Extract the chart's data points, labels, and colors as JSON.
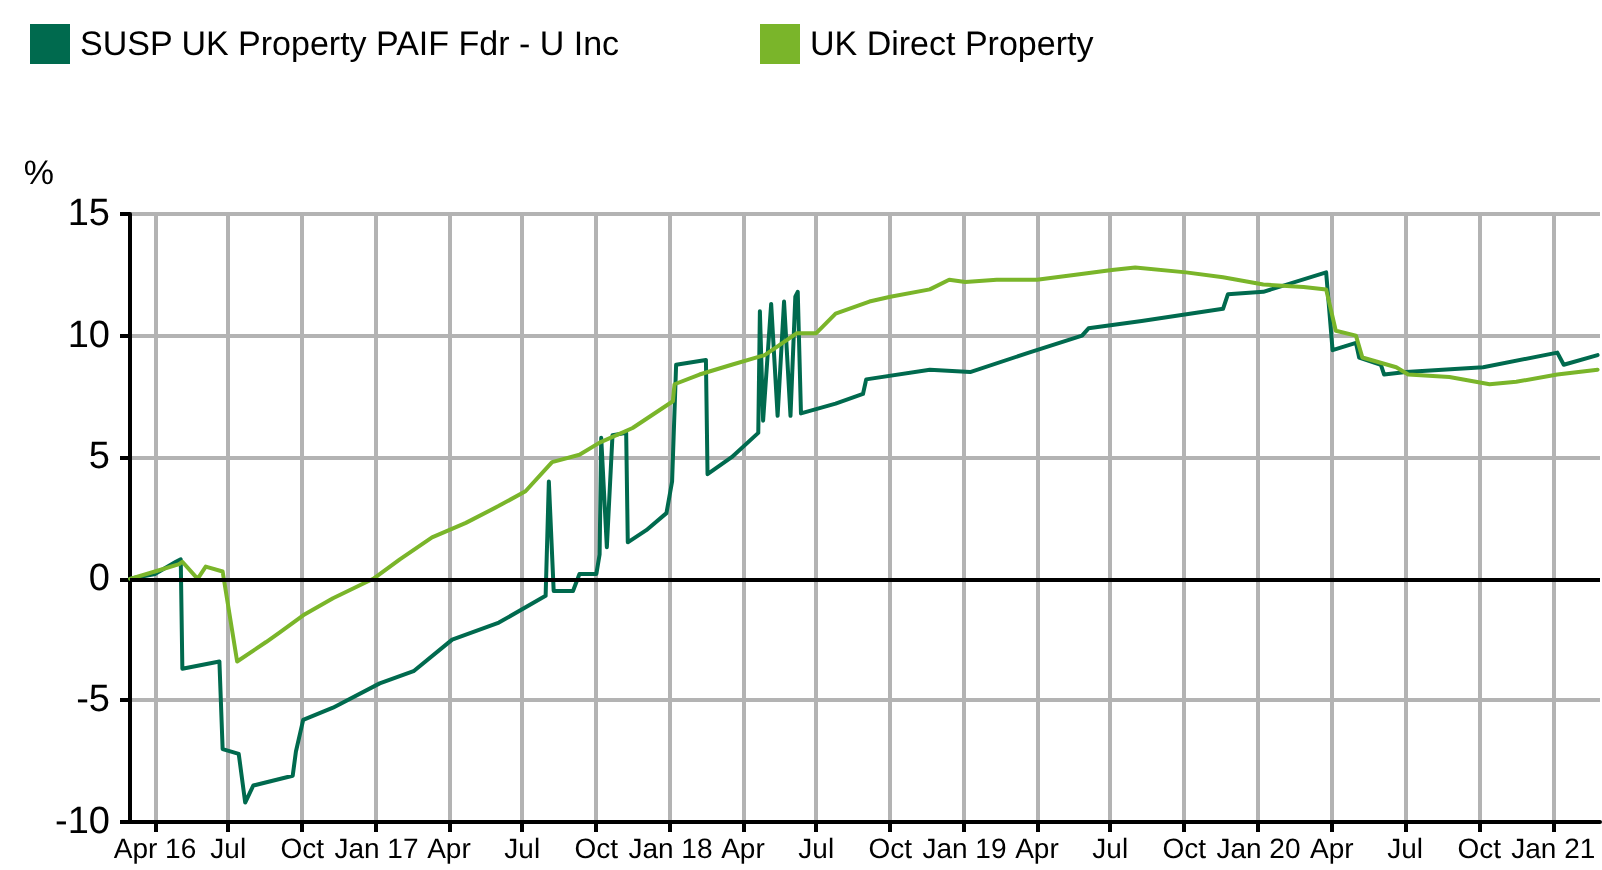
{
  "chart_data": {
    "type": "line",
    "ylabel": "%",
    "xlim": [
      "2016-03-01",
      "2021-02-28"
    ],
    "ylim": [
      -10,
      15
    ],
    "yticks": [
      -10,
      -5,
      0,
      5,
      10,
      15
    ],
    "xticks": [
      {
        "value": "2016-04-01",
        "label": "Apr 16"
      },
      {
        "value": "2016-07-01",
        "label": "Jul"
      },
      {
        "value": "2016-10-01",
        "label": "Oct"
      },
      {
        "value": "2017-01-01",
        "label": "Jan 17"
      },
      {
        "value": "2017-04-01",
        "label": "Apr"
      },
      {
        "value": "2017-07-01",
        "label": "Jul"
      },
      {
        "value": "2017-10-01",
        "label": "Oct"
      },
      {
        "value": "2018-01-01",
        "label": "Jan 18"
      },
      {
        "value": "2018-04-01",
        "label": "Apr"
      },
      {
        "value": "2018-07-01",
        "label": "Jul"
      },
      {
        "value": "2018-10-01",
        "label": "Oct"
      },
      {
        "value": "2019-01-01",
        "label": "Jan 19"
      },
      {
        "value": "2019-04-01",
        "label": "Apr"
      },
      {
        "value": "2019-07-01",
        "label": "Jul"
      },
      {
        "value": "2019-10-01",
        "label": "Oct"
      },
      {
        "value": "2020-01-01",
        "label": "Jan 20"
      },
      {
        "value": "2020-04-01",
        "label": "Apr"
      },
      {
        "value": "2020-07-01",
        "label": "Jul"
      },
      {
        "value": "2020-10-01",
        "label": "Oct"
      },
      {
        "value": "2021-01-01",
        "label": "Jan 21"
      }
    ],
    "grid": true,
    "legend": "top left",
    "marker": "none",
    "line_style": "solid",
    "ref_lines": [
      {
        "axis": "y",
        "value": 0,
        "color": "#000000"
      }
    ],
    "series": [
      {
        "name": "SUSP UK Property PAIF Fdr - U Inc",
        "color": "#006a4e",
        "x": [
          "2016-03-01",
          "2016-04-01",
          "2016-04-27",
          "2016-05-03",
          "2016-05-05",
          "2016-06-20",
          "2016-06-24",
          "2016-07-14",
          "2016-07-22",
          "2016-08-01",
          "2016-09-19",
          "2016-09-23",
          "2016-10-02",
          "2016-11-08",
          "2017-01-05",
          "2017-02-16",
          "2017-04-05",
          "2017-06-02",
          "2017-07-30",
          "2017-08-03",
          "2017-08-09",
          "2017-09-02",
          "2017-09-10",
          "2017-10-01",
          "2017-10-05",
          "2017-10-07",
          "2017-10-14",
          "2017-10-21",
          "2017-11-07",
          "2017-11-09",
          "2017-12-02",
          "2017-12-27",
          "2018-01-03",
          "2018-01-08",
          "2018-02-14",
          "2018-02-16",
          "2018-03-18",
          "2018-04-20",
          "2018-04-22",
          "2018-04-26",
          "2018-05-06",
          "2018-05-14",
          "2018-05-22",
          "2018-05-30",
          "2018-06-05",
          "2018-06-08",
          "2018-06-12",
          "2018-07-25",
          "2018-08-28",
          "2018-09-01",
          "2018-11-19",
          "2019-01-08",
          "2019-03-22",
          "2019-05-27",
          "2019-06-04",
          "2019-08-09",
          "2019-11-18",
          "2019-11-24",
          "2020-01-07",
          "2020-03-25",
          "2020-04-02",
          "2020-05-01",
          "2020-05-05",
          "2020-06-01",
          "2020-06-05",
          "2020-07-02",
          "2020-10-06",
          "2021-01-06",
          "2021-01-14",
          "2021-02-25"
        ],
        "values": [
          0,
          0.2,
          0.7,
          0.8,
          -3.7,
          -3.4,
          -7,
          -7.2,
          -9.2,
          -8.5,
          -8.1,
          -7.1,
          -5.8,
          -5.3,
          -4.3,
          -3.8,
          -2.5,
          -1.8,
          -0.7,
          4,
          -0.5,
          -0.5,
          0.2,
          0.2,
          1,
          5.8,
          1.3,
          5.9,
          6,
          1.5,
          2,
          2.7,
          4,
          8.8,
          9,
          4.3,
          5,
          6,
          11,
          6.5,
          11.3,
          6.7,
          11.4,
          6.7,
          11.6,
          11.8,
          6.8,
          7.2,
          7.6,
          8.2,
          8.6,
          8.5,
          9.3,
          10,
          10.3,
          10.6,
          11.1,
          11.7,
          11.8,
          12.6,
          9.4,
          9.7,
          9.1,
          8.8,
          8.4,
          8.5,
          8.7,
          9.3,
          8.8,
          9.2
        ]
      },
      {
        "name": "UK Direct Property",
        "color": "#7ab52a",
        "x": [
          "2016-03-01",
          "2016-04-01",
          "2016-05-01",
          "2016-05-05",
          "2016-05-24",
          "2016-06-03",
          "2016-06-24",
          "2016-07-12",
          "2016-08-17",
          "2016-09-03",
          "2016-10-02",
          "2016-11-08",
          "2016-12-28",
          "2017-01-30",
          "2017-03-11",
          "2017-04-22",
          "2017-06-02",
          "2017-07-05",
          "2017-08-07",
          "2017-09-10",
          "2017-10-05",
          "2017-11-15",
          "2018-01-04",
          "2018-01-06",
          "2018-02-06",
          "2018-03-18",
          "2018-04-28",
          "2018-06-07",
          "2018-07-01",
          "2018-07-25",
          "2018-09-05",
          "2018-10-01",
          "2018-11-19",
          "2018-12-13",
          "2019-01-02",
          "2019-02-10",
          "2019-04-01",
          "2019-05-19",
          "2019-07-03",
          "2019-08-01",
          "2019-10-03",
          "2019-11-18",
          "2020-01-07",
          "2020-02-26",
          "2020-03-25",
          "2020-04-06",
          "2020-05-01",
          "2020-05-09",
          "2020-06-20",
          "2020-07-05",
          "2020-08-25",
          "2020-10-14",
          "2020-11-16",
          "2021-01-06",
          "2021-02-25"
        ],
        "values": [
          0,
          0.3,
          0.6,
          0.7,
          0,
          0.5,
          0.3,
          -3.4,
          -2.6,
          -2.2,
          -1.5,
          -0.8,
          0,
          0.8,
          1.7,
          2.3,
          3,
          3.6,
          4.8,
          5.1,
          5.6,
          6.2,
          7.3,
          8,
          8.4,
          8.8,
          9.2,
          10.1,
          10.1,
          10.9,
          11.4,
          11.6,
          11.9,
          12.3,
          12.2,
          12.3,
          12.3,
          12.5,
          12.7,
          12.8,
          12.6,
          12.4,
          12.1,
          12,
          11.9,
          10.2,
          10,
          9.1,
          8.7,
          8.4,
          8.3,
          8,
          8.1,
          8.4,
          8.6
        ]
      }
    ]
  }
}
